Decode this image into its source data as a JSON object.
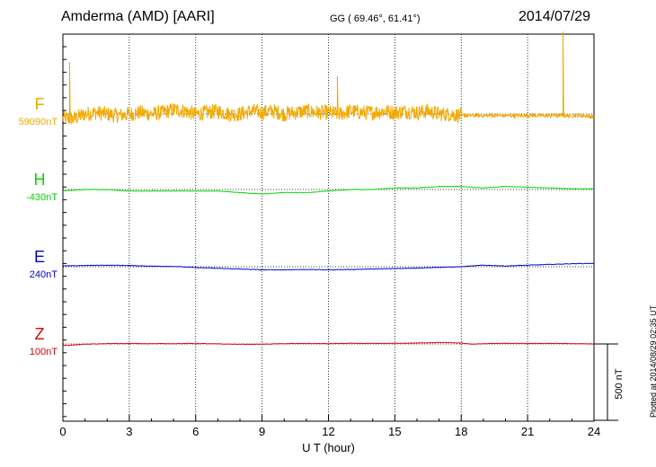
{
  "header": {
    "station": "Amderma (AMD)  [AARI]",
    "coordinates": "GG ( 69.46°,  61.41°)",
    "date": "2014/07/29"
  },
  "footer": {
    "plotted_at": "Plotted at 2014/08/29 02:35 UT"
  },
  "chart_data": {
    "type": "line",
    "title": "",
    "xlabel": "U T (hour)",
    "xlim": [
      0,
      24
    ],
    "xticks": [
      "0",
      "3",
      "6",
      "9",
      "12",
      "15",
      "18",
      "21",
      "24"
    ],
    "grid": "vertical dotted lines every 3 hours; dotted baseline per trace",
    "scale_bar": {
      "label": "500 nT",
      "value": 500
    },
    "series": [
      {
        "name": "F",
        "baseline_label": "59090nT",
        "baseline": 59090,
        "color": "#f5a800",
        "hours": [
          0,
          0.5,
          1,
          1.5,
          2,
          2.5,
          3,
          3.5,
          4,
          4.5,
          5,
          5.5,
          6,
          6.5,
          7,
          7.5,
          8,
          8.5,
          9,
          9.5,
          10,
          10.5,
          11,
          11.5,
          12,
          12.5,
          13,
          13.5,
          14,
          14.5,
          15,
          15.5,
          16,
          16.5,
          17,
          17.5,
          18,
          18.5,
          19,
          19.5,
          20,
          20.5,
          21,
          21.5,
          22,
          22.5,
          23,
          23.5,
          24
        ],
        "values": [
          59060,
          59060,
          59090,
          59100,
          59090,
          59080,
          59090,
          59100,
          59090,
          59100,
          59120,
          59110,
          59090,
          59100,
          59110,
          59090,
          59090,
          59110,
          59100,
          59110,
          59090,
          59100,
          59110,
          59100,
          59100,
          59090,
          59110,
          59100,
          59100,
          59110,
          59100,
          59110,
          59100,
          59110,
          59090,
          59090,
          59080,
          59080,
          59080,
          59080,
          59080,
          59080,
          59080,
          59080,
          59080,
          59080,
          59080,
          59080,
          59070
        ],
        "spikes": [
          [
            0.3,
            59430
          ],
          [
            12.4,
            59340
          ],
          [
            22.6,
            59630
          ]
        ],
        "noise_amplitude": 50
      },
      {
        "name": "H",
        "baseline_label": "-430nT",
        "baseline": -430,
        "color": "#00d800",
        "hours": [
          0,
          1,
          2,
          3,
          4,
          5,
          6,
          7,
          8,
          9,
          10,
          11,
          12,
          13,
          14,
          15,
          16,
          17,
          18,
          19,
          20,
          21,
          22,
          23,
          24
        ],
        "values": [
          -440,
          -430,
          -430,
          -440,
          -440,
          -440,
          -440,
          -440,
          -450,
          -460,
          -450,
          -450,
          -440,
          -430,
          -430,
          -420,
          -420,
          -410,
          -410,
          -420,
          -410,
          -415,
          -420,
          -425,
          -425
        ]
      },
      {
        "name": "E",
        "baseline_label": "240nT",
        "baseline": 240,
        "color": "#0000cc",
        "hours": [
          0,
          1,
          2,
          3,
          4,
          5,
          6,
          7,
          8,
          9,
          10,
          11,
          12,
          13,
          14,
          15,
          16,
          17,
          18,
          19,
          20,
          21,
          22,
          23,
          24
        ],
        "values": [
          245,
          248,
          250,
          248,
          244,
          242,
          235,
          230,
          225,
          220,
          220,
          222,
          220,
          222,
          225,
          228,
          232,
          236,
          240,
          250,
          245,
          250,
          255,
          260,
          262
        ]
      },
      {
        "name": "Z",
        "baseline_label": "100nT",
        "baseline": 100,
        "color": "#e00000",
        "hours": [
          0,
          0.5,
          1,
          2,
          3,
          4,
          5,
          6,
          7,
          8,
          9,
          10,
          11,
          12,
          13,
          14,
          15,
          16,
          17,
          18,
          18.5,
          19,
          20,
          21,
          22,
          23,
          24
        ],
        "values": [
          90,
          93,
          98,
          102,
          103,
          102,
          102,
          103,
          100,
          98,
          98,
          102,
          103,
          102,
          104,
          103,
          104,
          106,
          110,
          106,
          98,
          102,
          104,
          103,
          104,
          102,
          100
        ]
      }
    ]
  }
}
